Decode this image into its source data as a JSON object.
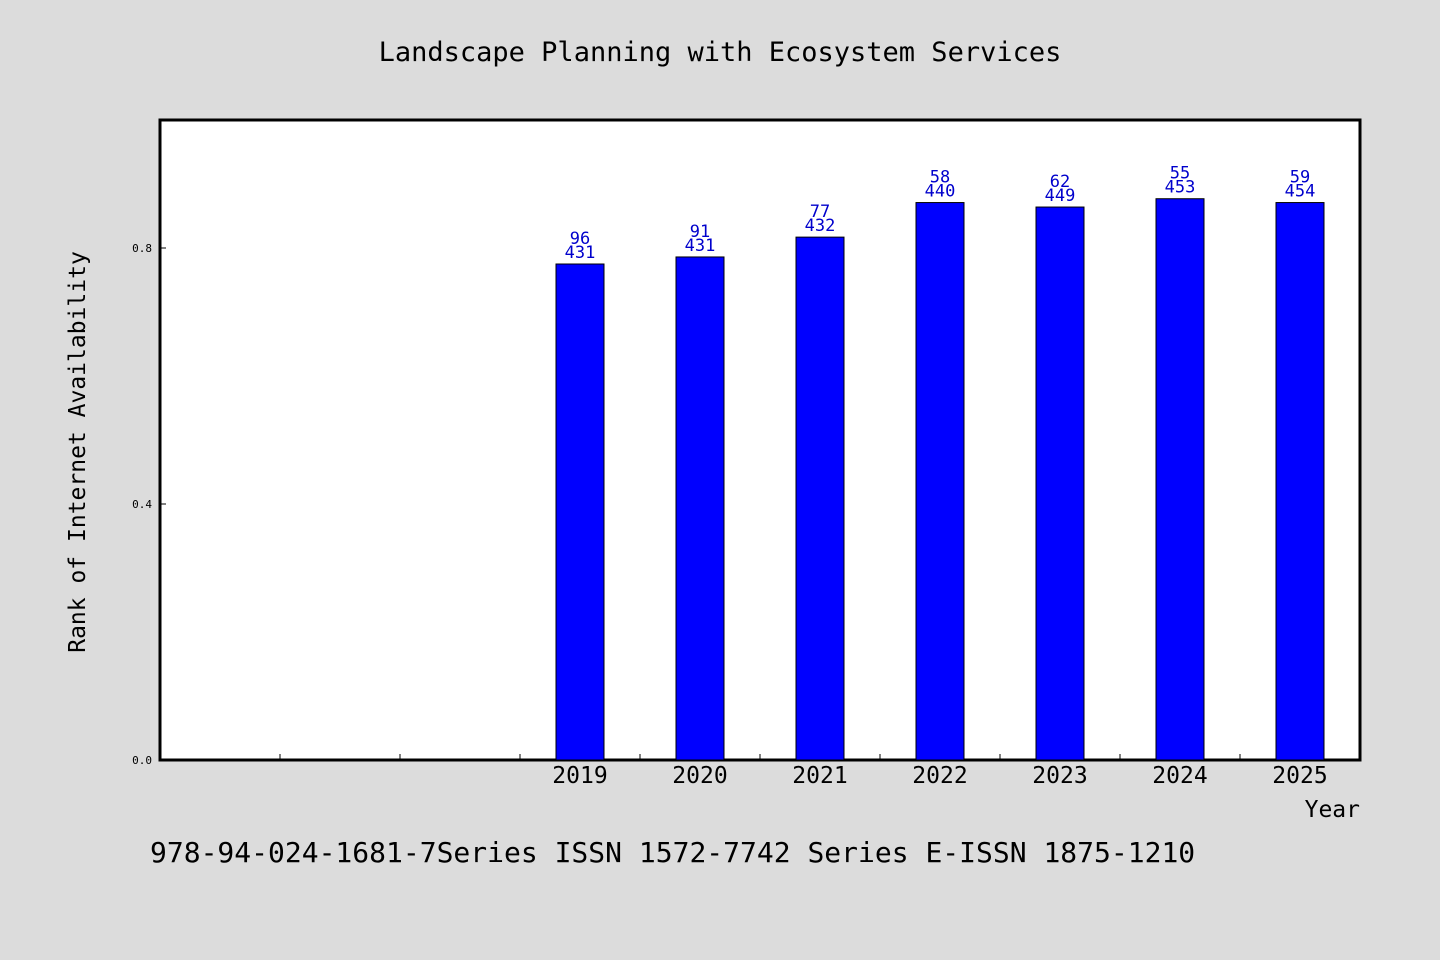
{
  "chart_data": {
    "type": "bar",
    "title": "Landscape Planning with Ecosystem Services",
    "xlabel": "Year",
    "ylabel": "Rank of Internet Availability",
    "categories": [
      "",
      "",
      "",
      "2019",
      "2020",
      "2021",
      "2022",
      "2023",
      "2024",
      "2025"
    ],
    "values": [
      null,
      null,
      null,
      0.775,
      0.786,
      0.817,
      0.871,
      0.864,
      0.877,
      0.871
    ],
    "bar_labels_top": [
      "",
      "",
      "",
      "96",
      "91",
      "77",
      "58",
      "62",
      "55",
      "59"
    ],
    "bar_labels_bottom": [
      "",
      "",
      "",
      "431",
      "431",
      "432",
      "440",
      "449",
      "453",
      "454"
    ],
    "ylim": [
      0,
      1.0
    ],
    "yticks": [
      0.0,
      0.4,
      0.8
    ],
    "ytick_labels": [
      "0.0",
      "0.4",
      "0.8"
    ],
    "grid": false,
    "colors": {
      "bar": "#0000ff",
      "label": "#0000cc",
      "background": "#dcdcdc",
      "plot": "#ffffff"
    }
  },
  "footer": "978-94-024-1681-7Series ISSN 1572-7742 Series E-ISSN 1875-1210"
}
